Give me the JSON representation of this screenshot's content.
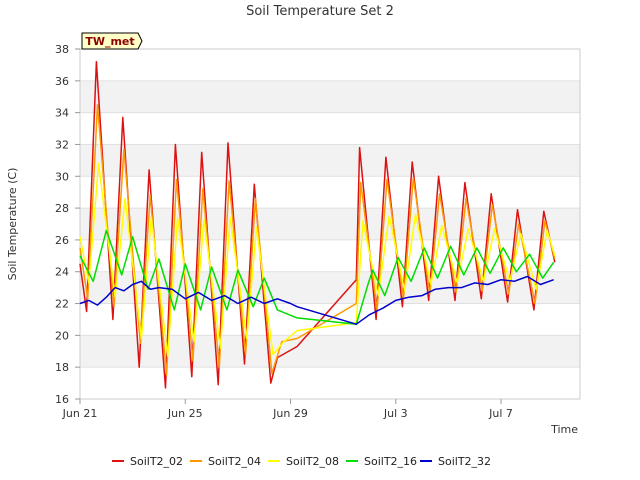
{
  "chart_data": {
    "type": "line",
    "title": "Soil Temperature Set 2",
    "xlabel": "Time",
    "ylabel": "Soil Temperature (C)",
    "badge": "TW_met",
    "ylim": [
      16,
      38
    ],
    "yticks": [
      16,
      18,
      20,
      22,
      24,
      26,
      28,
      30,
      32,
      34,
      36,
      38
    ],
    "xlim": [
      "2024-06-21",
      "2024-07-10"
    ],
    "xticks": [
      {
        "date": "2024-06-21",
        "label": "Jun 21"
      },
      {
        "date": "2024-06-25",
        "label": "Jun 25"
      },
      {
        "date": "2024-06-29",
        "label": "Jun 29"
      },
      {
        "date": "2024-07-03",
        "label": "Jul 3"
      },
      {
        "date": "2024-07-07",
        "label": "Jul 7"
      }
    ],
    "grid_bands": true,
    "legend_position": "bottom",
    "series": [
      {
        "name": "SoilT2_02",
        "color": "#dd1111",
        "points": [
          [
            "2024-06-21T00:00",
            24.5
          ],
          [
            "2024-06-21T06:00",
            21.5
          ],
          [
            "2024-06-21T15:00",
            37.2
          ],
          [
            "2024-06-22T06:00",
            21.0
          ],
          [
            "2024-06-22T15:00",
            33.7
          ],
          [
            "2024-06-23T06:00",
            18.0
          ],
          [
            "2024-06-23T15:00",
            30.4
          ],
          [
            "2024-06-24T06:00",
            16.7
          ],
          [
            "2024-06-24T15:00",
            32.0
          ],
          [
            "2024-06-25T06:00",
            17.4
          ],
          [
            "2024-06-25T15:00",
            31.5
          ],
          [
            "2024-06-26T06:00",
            16.9
          ],
          [
            "2024-06-26T15:00",
            32.1
          ],
          [
            "2024-06-27T06:00",
            18.2
          ],
          [
            "2024-06-27T15:00",
            29.5
          ],
          [
            "2024-06-28T06:00",
            17.0
          ],
          [
            "2024-06-28T12:00",
            18.6
          ],
          [
            "2024-06-29T06:00",
            19.3
          ],
          [
            "2024-07-01T12:00",
            23.5
          ],
          [
            "2024-07-01T15:00",
            31.8
          ],
          [
            "2024-07-02T06:00",
            21.0
          ],
          [
            "2024-07-02T15:00",
            31.2
          ],
          [
            "2024-07-03T06:00",
            21.8
          ],
          [
            "2024-07-03T15:00",
            30.9
          ],
          [
            "2024-07-04T06:00",
            22.2
          ],
          [
            "2024-07-04T15:00",
            30.0
          ],
          [
            "2024-07-05T06:00",
            22.2
          ],
          [
            "2024-07-05T15:00",
            29.6
          ],
          [
            "2024-07-06T06:00",
            22.3
          ],
          [
            "2024-07-06T15:00",
            28.9
          ],
          [
            "2024-07-07T06:00",
            22.1
          ],
          [
            "2024-07-07T15:00",
            27.9
          ],
          [
            "2024-07-08T06:00",
            21.6
          ],
          [
            "2024-07-08T15:00",
            27.8
          ],
          [
            "2024-07-09T01:00",
            24.6
          ]
        ]
      },
      {
        "name": "SoilT2_04",
        "color": "#ff9900",
        "points": [
          [
            "2024-06-21T00:00",
            25.5
          ],
          [
            "2024-06-21T07:00",
            22.3
          ],
          [
            "2024-06-21T16:00",
            34.5
          ],
          [
            "2024-06-22T07:00",
            21.8
          ],
          [
            "2024-06-22T16:00",
            31.7
          ],
          [
            "2024-06-23T07:00",
            19.5
          ],
          [
            "2024-06-23T16:00",
            28.8
          ],
          [
            "2024-06-24T07:00",
            17.5
          ],
          [
            "2024-06-24T16:00",
            29.8
          ],
          [
            "2024-06-25T07:00",
            18.4
          ],
          [
            "2024-06-25T16:00",
            29.2
          ],
          [
            "2024-06-26T07:00",
            18.0
          ],
          [
            "2024-06-26T16:00",
            29.7
          ],
          [
            "2024-06-27T07:00",
            18.8
          ],
          [
            "2024-06-27T16:00",
            28.6
          ],
          [
            "2024-06-28T07:00",
            17.6
          ],
          [
            "2024-06-28T16:00",
            19.6
          ],
          [
            "2024-06-29T06:00",
            19.8
          ],
          [
            "2024-07-01T12:00",
            22.0
          ],
          [
            "2024-07-01T16:00",
            29.6
          ],
          [
            "2024-07-02T07:00",
            21.6
          ],
          [
            "2024-07-02T16:00",
            29.8
          ],
          [
            "2024-07-03T07:00",
            22.3
          ],
          [
            "2024-07-03T16:00",
            29.9
          ],
          [
            "2024-07-04T07:00",
            22.6
          ],
          [
            "2024-07-04T16:00",
            28.9
          ],
          [
            "2024-07-05T07:00",
            22.7
          ],
          [
            "2024-07-05T16:00",
            28.6
          ],
          [
            "2024-07-06T07:00",
            22.8
          ],
          [
            "2024-07-06T16:00",
            28.2
          ],
          [
            "2024-07-07T07:00",
            22.6
          ],
          [
            "2024-07-07T16:00",
            27.0
          ],
          [
            "2024-07-08T07:00",
            22.0
          ],
          [
            "2024-07-08T16:00",
            27.2
          ],
          [
            "2024-07-09T01:00",
            24.8
          ]
        ]
      },
      {
        "name": "SoilT2_08",
        "color": "#ffff00",
        "points": [
          [
            "2024-06-21T00:00",
            26.2
          ],
          [
            "2024-06-21T08:00",
            23.3
          ],
          [
            "2024-06-21T17:00",
            30.8
          ],
          [
            "2024-06-22T08:00",
            22.4
          ],
          [
            "2024-06-22T17:00",
            28.6
          ],
          [
            "2024-06-23T08:00",
            19.8
          ],
          [
            "2024-06-23T17:00",
            27.4
          ],
          [
            "2024-06-24T08:00",
            18.7
          ],
          [
            "2024-06-24T17:00",
            27.4
          ],
          [
            "2024-06-25T08:00",
            19.6
          ],
          [
            "2024-06-25T17:00",
            27.3
          ],
          [
            "2024-06-26T08:00",
            19.2
          ],
          [
            "2024-06-26T17:00",
            27.4
          ],
          [
            "2024-06-27T08:00",
            19.8
          ],
          [
            "2024-06-27T17:00",
            26.8
          ],
          [
            "2024-06-28T08:00",
            18.8
          ],
          [
            "2024-06-28T18:00",
            19.6
          ],
          [
            "2024-06-29T06:00",
            20.3
          ],
          [
            "2024-07-01T12:00",
            20.8
          ],
          [
            "2024-07-01T18:00",
            27.2
          ],
          [
            "2024-07-02T08:00",
            22.5
          ],
          [
            "2024-07-02T18:00",
            27.5
          ],
          [
            "2024-07-03T08:00",
            22.8
          ],
          [
            "2024-07-03T18:00",
            27.6
          ],
          [
            "2024-07-04T08:00",
            23.2
          ],
          [
            "2024-07-04T18:00",
            26.9
          ],
          [
            "2024-07-05T08:00",
            23.3
          ],
          [
            "2024-07-05T18:00",
            26.7
          ],
          [
            "2024-07-06T08:00",
            23.4
          ],
          [
            "2024-07-06T18:00",
            26.7
          ],
          [
            "2024-07-07T08:00",
            23.4
          ],
          [
            "2024-07-07T18:00",
            26.4
          ],
          [
            "2024-07-08T08:00",
            22.9
          ],
          [
            "2024-07-08T18:00",
            26.6
          ],
          [
            "2024-07-09T01:00",
            25.0
          ]
        ]
      },
      {
        "name": "SoilT2_16",
        "color": "#00dd00",
        "points": [
          [
            "2024-06-21T00:00",
            25.0
          ],
          [
            "2024-06-21T12:00",
            23.4
          ],
          [
            "2024-06-22T00:00",
            26.6
          ],
          [
            "2024-06-22T14:00",
            23.8
          ],
          [
            "2024-06-23T00:00",
            26.2
          ],
          [
            "2024-06-23T14:00",
            22.9
          ],
          [
            "2024-06-24T00:00",
            24.8
          ],
          [
            "2024-06-24T14:00",
            21.6
          ],
          [
            "2024-06-25T00:00",
            24.5
          ],
          [
            "2024-06-25T14:00",
            21.6
          ],
          [
            "2024-06-26T00:00",
            24.3
          ],
          [
            "2024-06-26T14:00",
            21.6
          ],
          [
            "2024-06-27T00:00",
            24.1
          ],
          [
            "2024-06-27T14:00",
            21.8
          ],
          [
            "2024-06-28T00:00",
            23.6
          ],
          [
            "2024-06-28T12:00",
            21.6
          ],
          [
            "2024-06-29T06:00",
            21.1
          ],
          [
            "2024-07-01T12:00",
            20.7
          ],
          [
            "2024-07-01T23:00",
            23.3
          ],
          [
            "2024-07-02T03:00",
            24.1
          ],
          [
            "2024-07-02T14:00",
            22.5
          ],
          [
            "2024-07-03T02:00",
            24.9
          ],
          [
            "2024-07-03T14:00",
            23.4
          ],
          [
            "2024-07-04T02:00",
            25.5
          ],
          [
            "2024-07-04T14:00",
            23.6
          ],
          [
            "2024-07-05T02:00",
            25.6
          ],
          [
            "2024-07-05T14:00",
            23.8
          ],
          [
            "2024-07-06T02:00",
            25.5
          ],
          [
            "2024-07-06T14:00",
            23.9
          ],
          [
            "2024-07-07T02:00",
            25.5
          ],
          [
            "2024-07-07T14:00",
            24.0
          ],
          [
            "2024-07-08T02:00",
            25.1
          ],
          [
            "2024-07-08T14:00",
            23.6
          ],
          [
            "2024-07-09T00:00",
            24.6
          ]
        ]
      },
      {
        "name": "SoilT2_32",
        "color": "#0000cc",
        "points": [
          [
            "2024-06-21T00:00",
            22.0
          ],
          [
            "2024-06-21T08:00",
            22.2
          ],
          [
            "2024-06-21T16:00",
            21.9
          ],
          [
            "2024-06-22T00:00",
            22.4
          ],
          [
            "2024-06-22T08:00",
            23.0
          ],
          [
            "2024-06-22T16:00",
            22.8
          ],
          [
            "2024-06-23T00:00",
            23.2
          ],
          [
            "2024-06-23T08:00",
            23.4
          ],
          [
            "2024-06-23T16:00",
            22.9
          ],
          [
            "2024-06-24T00:00",
            23.0
          ],
          [
            "2024-06-24T12:00",
            22.9
          ],
          [
            "2024-06-25T00:00",
            22.3
          ],
          [
            "2024-06-25T12:00",
            22.7
          ],
          [
            "2024-06-26T00:00",
            22.2
          ],
          [
            "2024-06-26T12:00",
            22.5
          ],
          [
            "2024-06-27T00:00",
            22.0
          ],
          [
            "2024-06-27T12:00",
            22.4
          ],
          [
            "2024-06-28T00:00",
            22.0
          ],
          [
            "2024-06-28T12:00",
            22.3
          ],
          [
            "2024-06-29T00:00",
            22.0
          ],
          [
            "2024-06-29T06:00",
            21.8
          ],
          [
            "2024-07-01T12:00",
            20.7
          ],
          [
            "2024-07-02T00:00",
            21.3
          ],
          [
            "2024-07-02T12:00",
            21.7
          ],
          [
            "2024-07-03T00:00",
            22.2
          ],
          [
            "2024-07-03T12:00",
            22.4
          ],
          [
            "2024-07-04T00:00",
            22.5
          ],
          [
            "2024-07-04T12:00",
            22.9
          ],
          [
            "2024-07-05T00:00",
            23.0
          ],
          [
            "2024-07-05T12:00",
            23.0
          ],
          [
            "2024-07-06T00:00",
            23.3
          ],
          [
            "2024-07-06T12:00",
            23.2
          ],
          [
            "2024-07-07T00:00",
            23.5
          ],
          [
            "2024-07-07T12:00",
            23.4
          ],
          [
            "2024-07-08T00:00",
            23.7
          ],
          [
            "2024-07-08T12:00",
            23.2
          ],
          [
            "2024-07-09T00:00",
            23.5
          ]
        ]
      }
    ]
  }
}
